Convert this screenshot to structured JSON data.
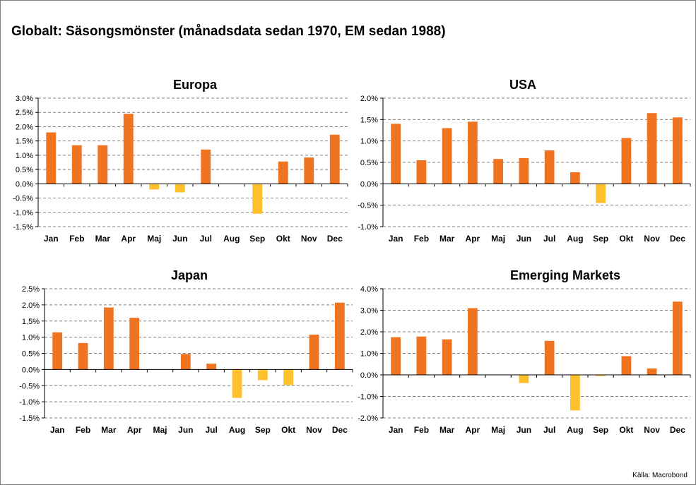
{
  "title": "Globalt:  Säsongsmönster (månadsdata sedan 1970, EM sedan 1988)",
  "source": "Källa: Macrobond",
  "colors": {
    "positive": "#F07322",
    "negative": "#FFC12B",
    "grid": "#808080"
  },
  "chart_data": [
    {
      "type": "bar",
      "title": "Europa",
      "categories": [
        "Jan",
        "Feb",
        "Mar",
        "Apr",
        "Maj",
        "Jun",
        "Jul",
        "Aug",
        "Sep",
        "Okt",
        "Nov",
        "Dec"
      ],
      "values": [
        1.8,
        1.35,
        1.35,
        2.45,
        -0.2,
        -0.3,
        1.2,
        0.0,
        -1.05,
        0.78,
        0.92,
        1.72
      ],
      "ylim": [
        -1.5,
        3.0
      ],
      "yticks": [
        3.0,
        2.5,
        2.0,
        1.5,
        1.0,
        0.5,
        0.0,
        -0.5,
        -1.0,
        -1.5
      ],
      "ytick_labels": [
        "3.0%",
        "2.5%",
        "2.0%",
        "1.5%",
        "1.0%",
        "0.5%",
        "0.0%",
        "-0.5%",
        "-1.0%",
        "-1.5%"
      ]
    },
    {
      "type": "bar",
      "title": "USA",
      "categories": [
        "Jan",
        "Feb",
        "Mar",
        "Apr",
        "Maj",
        "Jun",
        "Jul",
        "Aug",
        "Sep",
        "Okt",
        "Nov",
        "Dec"
      ],
      "values": [
        1.4,
        0.55,
        1.3,
        1.45,
        0.58,
        0.6,
        0.78,
        0.27,
        -0.45,
        1.07,
        1.65,
        1.55
      ],
      "ylim": [
        -1.0,
        2.0
      ],
      "yticks": [
        2.0,
        1.5,
        1.0,
        0.5,
        0.0,
        -0.5,
        -1.0
      ],
      "ytick_labels": [
        "2.0%",
        "1.5%",
        "1.0%",
        "0.5%",
        "0.0%",
        "-0.5%",
        "-1.0%"
      ]
    },
    {
      "type": "bar",
      "title": "Japan",
      "categories": [
        "Jan",
        "Feb",
        "Mar",
        "Apr",
        "Maj",
        "Jun",
        "Jul",
        "Aug",
        "Sep",
        "Okt",
        "Nov",
        "Dec"
      ],
      "values": [
        1.15,
        0.82,
        1.92,
        1.6,
        0.0,
        0.48,
        0.18,
        -0.88,
        -0.33,
        -0.48,
        1.08,
        2.07
      ],
      "ylim": [
        -1.5,
        2.5
      ],
      "yticks": [
        2.5,
        2.0,
        1.5,
        1.0,
        0.5,
        0.0,
        -0.5,
        -1.0,
        -1.5
      ],
      "ytick_labels": [
        "2.5%",
        "2.0%",
        "1.5%",
        "1.0%",
        "0.5%",
        "0.0%",
        "-0.5%",
        "-1.0%",
        "-1.5%"
      ]
    },
    {
      "type": "bar",
      "title": "Emerging Markets",
      "categories": [
        "Jan",
        "Feb",
        "Mar",
        "Apr",
        "Maj",
        "Jun",
        "Jul",
        "Aug",
        "Sep",
        "Okt",
        "Nov",
        "Dec"
      ],
      "values": [
        1.75,
        1.78,
        1.65,
        3.1,
        0.0,
        -0.38,
        1.58,
        -1.65,
        -0.05,
        0.87,
        0.3,
        3.4
      ],
      "ylim": [
        -2.0,
        4.0
      ],
      "yticks": [
        4.0,
        3.0,
        2.0,
        1.0,
        0.0,
        -1.0,
        -2.0
      ],
      "ytick_labels": [
        "4.0%",
        "3.0%",
        "2.0%",
        "1.0%",
        "0.0%",
        "-1.0%",
        "-2.0%"
      ]
    }
  ]
}
